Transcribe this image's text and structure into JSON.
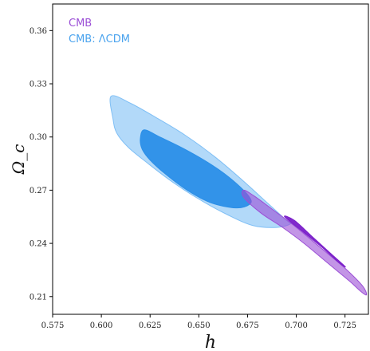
{
  "chart_data": {
    "type": "contour",
    "xlabel": "h",
    "ylabel": "Ω_c",
    "xlim": [
      0.575,
      0.737
    ],
    "ylim": [
      0.2,
      0.375
    ],
    "x_ticks": [
      0.575,
      0.6,
      0.625,
      0.65,
      0.675,
      0.7,
      0.725
    ],
    "x_tick_labels": [
      "0.575",
      "0.600",
      "0.625",
      "0.650",
      "0.675",
      "0.700",
      "0.725"
    ],
    "y_ticks": [
      0.21,
      0.24,
      0.27,
      0.3,
      0.33,
      0.36
    ],
    "y_tick_labels": [
      "0.21",
      "0.24",
      "0.27",
      "0.30",
      "0.33",
      "0.36"
    ],
    "grid": false,
    "legend_placement": "top-left",
    "series": [
      {
        "name": "CMB",
        "color": "#9b4fd6",
        "color_inner": "#7a1fc9",
        "contours": [
          {
            "level": "95%",
            "points": [
              [
                0.673,
                0.266
              ],
              [
                0.682,
                0.257
              ],
              [
                0.693,
                0.249
              ],
              [
                0.704,
                0.24
              ],
              [
                0.716,
                0.229
              ],
              [
                0.727,
                0.219
              ],
              [
                0.733,
                0.213
              ],
              [
                0.736,
                0.211
              ],
              [
                0.734,
                0.216
              ],
              [
                0.725,
                0.226
              ],
              [
                0.712,
                0.238
              ],
              [
                0.7,
                0.249
              ],
              [
                0.688,
                0.259
              ],
              [
                0.678,
                0.267
              ],
              [
                0.673,
                0.27
              ]
            ]
          },
          {
            "level": "68%",
            "points": [
              [
                0.694,
                0.255
              ],
              [
                0.704,
                0.246
              ],
              [
                0.713,
                0.238
              ],
              [
                0.722,
                0.229
              ],
              [
                0.725,
                0.227
              ],
              [
                0.717,
                0.235
              ],
              [
                0.708,
                0.244
              ],
              [
                0.699,
                0.253
              ]
            ]
          }
        ]
      },
      {
        "name": "CMB: ΛCDM",
        "color": "#7fbff5",
        "color_inner": "#2b8fe8",
        "contours": [
          {
            "level": "95%",
            "points": [
              [
                0.605,
                0.323
              ],
              [
                0.615,
                0.319
              ],
              [
                0.628,
                0.311
              ],
              [
                0.643,
                0.301
              ],
              [
                0.658,
                0.289
              ],
              [
                0.672,
                0.276
              ],
              [
                0.684,
                0.264
              ],
              [
                0.695,
                0.253
              ],
              [
                0.697,
                0.251
              ],
              [
                0.69,
                0.249
              ],
              [
                0.678,
                0.25
              ],
              [
                0.665,
                0.256
              ],
              [
                0.65,
                0.265
              ],
              [
                0.636,
                0.275
              ],
              [
                0.624,
                0.285
              ],
              [
                0.614,
                0.294
              ],
              [
                0.608,
                0.302
              ],
              [
                0.606,
                0.31
              ]
            ]
          },
          {
            "level": "68%",
            "points": [
              [
                0.622,
                0.304
              ],
              [
                0.63,
                0.3
              ],
              [
                0.643,
                0.293
              ],
              [
                0.657,
                0.284
              ],
              [
                0.668,
                0.275
              ],
              [
                0.676,
                0.266
              ],
              [
                0.676,
                0.262
              ],
              [
                0.669,
                0.26
              ],
              [
                0.656,
                0.263
              ],
              [
                0.644,
                0.27
              ],
              [
                0.633,
                0.279
              ],
              [
                0.625,
                0.287
              ],
              [
                0.621,
                0.293
              ],
              [
                0.62,
                0.299
              ]
            ]
          }
        ]
      }
    ]
  }
}
